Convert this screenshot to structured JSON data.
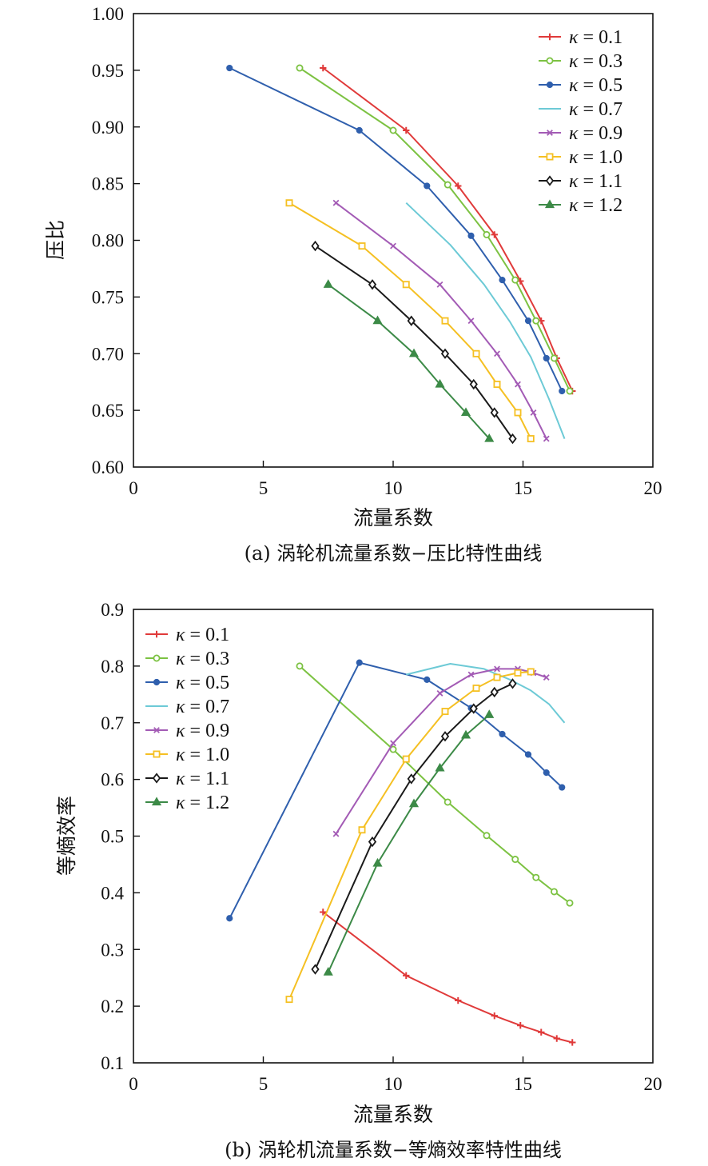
{
  "chart_data": [
    {
      "type": "line",
      "caption": "(a) 涡轮机流量系数−压比特性曲线",
      "xlabel": "流量系数",
      "ylabel": "压比",
      "xlim": [
        0,
        20
      ],
      "ylim": [
        0.6,
        1.0
      ],
      "xticks": [
        "0",
        "5",
        "10",
        "15",
        "20"
      ],
      "yticks": [
        "0.60",
        "0.65",
        "0.70",
        "0.75",
        "0.80",
        "0.85",
        "0.90",
        "0.95",
        "1.00"
      ],
      "legend_position": "top-right",
      "grid": false,
      "series": [
        {
          "name": "κ = 0.1",
          "kappa": "κ",
          "eq": " = 0.1",
          "color": "#e03a3a",
          "marker": "plus",
          "x": [
            7.3,
            10.5,
            12.5,
            13.9,
            14.9,
            15.7,
            16.3,
            16.9
          ],
          "y": [
            0.952,
            0.897,
            0.848,
            0.805,
            0.764,
            0.729,
            0.696,
            0.667
          ]
        },
        {
          "name": "κ = 0.3",
          "kappa": "κ",
          "eq": " = 0.3",
          "color": "#7cc242",
          "marker": "circle",
          "x": [
            6.4,
            10.0,
            12.1,
            13.6,
            14.7,
            15.5,
            16.2,
            16.8
          ],
          "y": [
            0.952,
            0.897,
            0.849,
            0.805,
            0.765,
            0.729,
            0.696,
            0.667
          ]
        },
        {
          "name": "κ = 0.5",
          "kappa": "κ",
          "eq": " = 0.5",
          "color": "#2f5fad",
          "marker": "dot",
          "x": [
            3.7,
            8.7,
            11.3,
            13.0,
            14.2,
            15.2,
            15.9,
            16.5
          ],
          "y": [
            0.952,
            0.897,
            0.848,
            0.804,
            0.765,
            0.729,
            0.696,
            0.667
          ]
        },
        {
          "name": "κ = 0.7",
          "kappa": "κ",
          "eq": " = 0.7",
          "color": "#6dcad6",
          "marker": "none",
          "x": [
            10.5,
            12.2,
            13.5,
            14.5,
            15.3,
            16.0,
            16.6
          ],
          "y": [
            0.833,
            0.796,
            0.761,
            0.728,
            0.697,
            0.66,
            0.625
          ]
        },
        {
          "name": "κ = 0.9",
          "kappa": "κ",
          "eq": " = 0.9",
          "color": "#a35bb5",
          "marker": "cross",
          "x": [
            7.8,
            10.0,
            11.8,
            13.0,
            14.0,
            14.8,
            15.4,
            15.9
          ],
          "y": [
            0.833,
            0.795,
            0.761,
            0.729,
            0.7,
            0.673,
            0.648,
            0.625
          ]
        },
        {
          "name": "κ = 1.0",
          "kappa": "κ",
          "eq": " = 1.0",
          "color": "#f5c023",
          "marker": "square",
          "x": [
            6.0,
            8.8,
            10.5,
            12.0,
            13.2,
            14.0,
            14.8,
            15.3
          ],
          "y": [
            0.833,
            0.795,
            0.761,
            0.729,
            0.7,
            0.673,
            0.648,
            0.625
          ]
        },
        {
          "name": "κ = 1.1",
          "kappa": "κ",
          "eq": " = 1.1",
          "color": "#1a1a1a",
          "marker": "diamond",
          "x": [
            7.0,
            9.2,
            10.7,
            12.0,
            13.1,
            13.9,
            14.6
          ],
          "y": [
            0.795,
            0.761,
            0.729,
            0.7,
            0.673,
            0.648,
            0.625
          ]
        },
        {
          "name": "κ = 1.2",
          "kappa": "κ",
          "eq": " = 1.2",
          "color": "#3c8a47",
          "marker": "triangle",
          "x": [
            7.5,
            9.4,
            10.8,
            11.8,
            12.8,
            13.7
          ],
          "y": [
            0.761,
            0.729,
            0.7,
            0.673,
            0.648,
            0.625
          ]
        }
      ]
    },
    {
      "type": "line",
      "caption": "(b) 涡轮机流量系数−等熵效率特性曲线",
      "xlabel": "流量系数",
      "ylabel": "等熵效率",
      "xlim": [
        0,
        20
      ],
      "ylim": [
        0.1,
        0.9
      ],
      "xticks": [
        "0",
        "5",
        "10",
        "15",
        "20"
      ],
      "yticks": [
        "0.1",
        "0.2",
        "0.3",
        "0.4",
        "0.5",
        "0.6",
        "0.7",
        "0.8",
        "0.9"
      ],
      "legend_position": "top-left",
      "grid": false,
      "series": [
        {
          "name": "κ = 0.1",
          "kappa": "κ",
          "eq": " = 0.1",
          "color": "#e03a3a",
          "marker": "plus",
          "x": [
            7.3,
            10.5,
            12.5,
            13.9,
            14.9,
            15.7,
            16.3,
            16.9
          ],
          "y": [
            0.366,
            0.254,
            0.21,
            0.183,
            0.166,
            0.154,
            0.143,
            0.136
          ]
        },
        {
          "name": "κ = 0.3",
          "kappa": "κ",
          "eq": " = 0.3",
          "color": "#7cc242",
          "marker": "circle",
          "x": [
            6.4,
            10.0,
            12.1,
            13.6,
            14.7,
            15.5,
            16.2,
            16.8
          ],
          "y": [
            0.8,
            0.653,
            0.56,
            0.501,
            0.459,
            0.427,
            0.402,
            0.382
          ]
        },
        {
          "name": "κ = 0.5",
          "kappa": "κ",
          "eq": " = 0.5",
          "color": "#2f5fad",
          "marker": "dot",
          "x": [
            3.7,
            8.7,
            11.3,
            13.0,
            14.2,
            15.2,
            15.9,
            16.5
          ],
          "y": [
            0.355,
            0.806,
            0.776,
            0.726,
            0.68,
            0.644,
            0.612,
            0.586
          ]
        },
        {
          "name": "κ = 0.7",
          "kappa": "κ",
          "eq": " = 0.7",
          "color": "#6dcad6",
          "marker": "none",
          "x": [
            10.5,
            12.2,
            13.5,
            14.5,
            15.3,
            16.0,
            16.6
          ],
          "y": [
            0.785,
            0.804,
            0.795,
            0.776,
            0.757,
            0.733,
            0.7
          ]
        },
        {
          "name": "κ = 0.9",
          "kappa": "κ",
          "eq": " = 0.9",
          "color": "#a35bb5",
          "marker": "cross",
          "x": [
            7.8,
            10.0,
            11.8,
            13.0,
            14.0,
            14.8,
            15.4,
            15.9
          ],
          "y": [
            0.504,
            0.664,
            0.752,
            0.785,
            0.795,
            0.795,
            0.788,
            0.78
          ]
        },
        {
          "name": "κ = 1.0",
          "kappa": "κ",
          "eq": " = 1.0",
          "color": "#f5c023",
          "marker": "square",
          "x": [
            6.0,
            8.8,
            10.5,
            12.0,
            13.2,
            14.0,
            14.8,
            15.3
          ],
          "y": [
            0.212,
            0.511,
            0.636,
            0.72,
            0.761,
            0.78,
            0.788,
            0.79
          ]
        },
        {
          "name": "κ = 1.1",
          "kappa": "κ",
          "eq": " = 1.1",
          "color": "#1a1a1a",
          "marker": "diamond",
          "x": [
            7.0,
            9.2,
            10.7,
            12.0,
            13.1,
            13.9,
            14.6
          ],
          "y": [
            0.265,
            0.49,
            0.601,
            0.676,
            0.725,
            0.754,
            0.769
          ]
        },
        {
          "name": "κ = 1.2",
          "kappa": "κ",
          "eq": " = 1.2",
          "color": "#3c8a47",
          "marker": "triangle",
          "x": [
            7.5,
            9.4,
            10.8,
            11.8,
            12.8,
            13.7
          ],
          "y": [
            0.26,
            0.452,
            0.557,
            0.62,
            0.678,
            0.714
          ]
        }
      ]
    }
  ]
}
